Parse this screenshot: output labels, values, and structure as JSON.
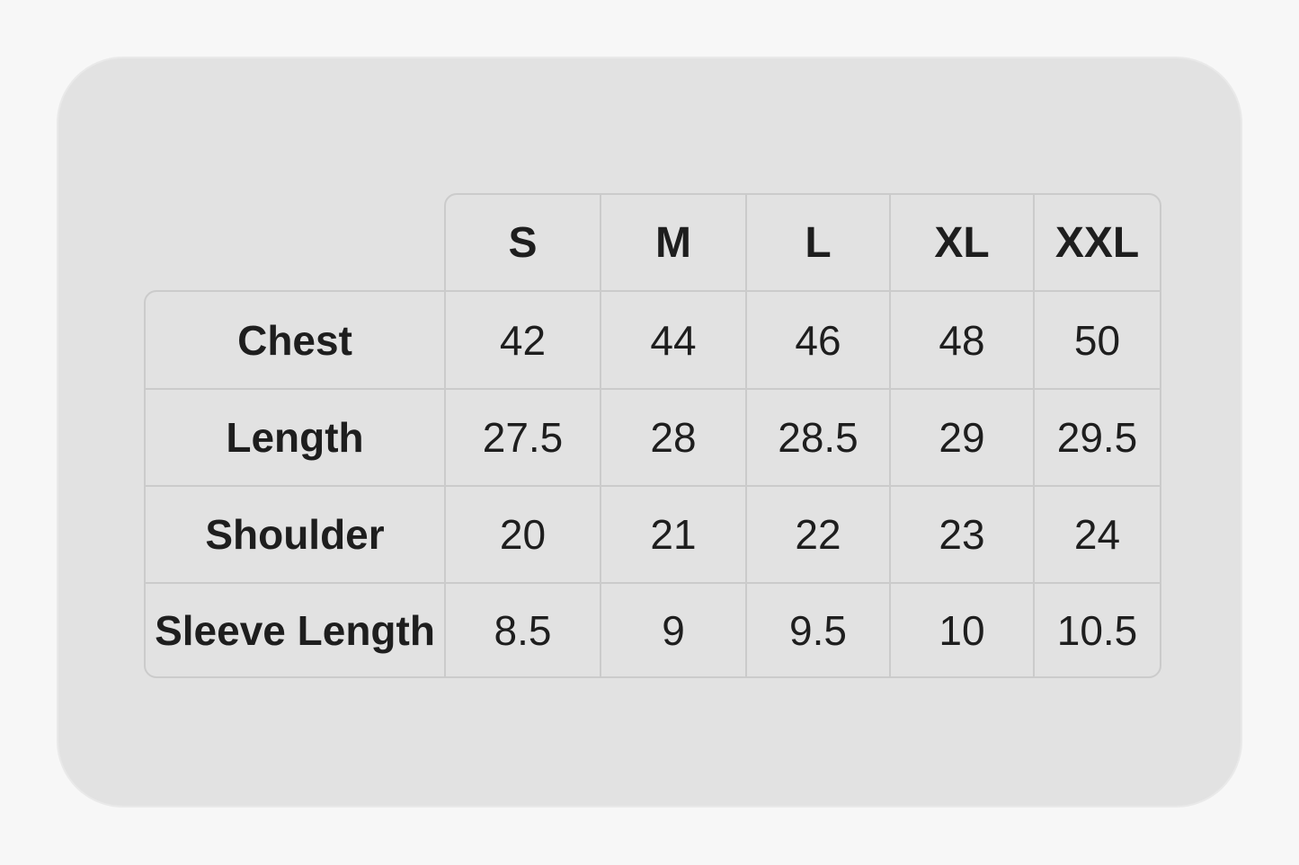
{
  "size_chart": {
    "sizes": [
      "S",
      "M",
      "L",
      "XL",
      "XXL"
    ],
    "rows": [
      {
        "label": "Chest",
        "values": [
          "42",
          "44",
          "46",
          "48",
          "50"
        ]
      },
      {
        "label": "Length",
        "values": [
          "27.5",
          "28",
          "28.5",
          "29",
          "29.5"
        ]
      },
      {
        "label": "Shoulder",
        "values": [
          "20",
          "21",
          "22",
          "23",
          "24"
        ]
      },
      {
        "label": "Sleeve Length",
        "values": [
          "8.5",
          "9",
          "9.5",
          "10",
          "10.5"
        ]
      }
    ]
  },
  "colors": {
    "page": "#f7f7f7",
    "card": "#e2e2e2",
    "border": "#cbcbcb",
    "text": "#1e1e1e"
  }
}
